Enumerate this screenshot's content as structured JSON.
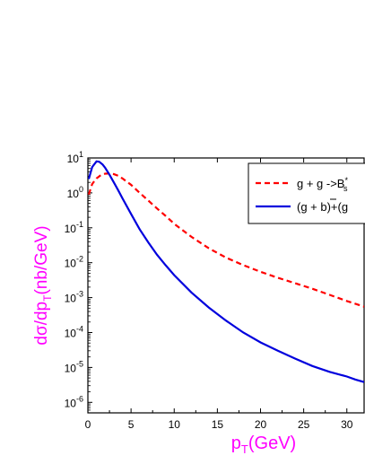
{
  "chart_data": {
    "type": "line",
    "xlabel": "p",
    "xlabel_sub": "T",
    "xlabel_tail": "(GeV)",
    "ylabel": "dσ/dp",
    "ylabel_sub": "T",
    "ylabel_tail": "(nb/GeV)",
    "xlim": [
      0,
      32
    ],
    "ylim": [
      5e-07,
      10
    ],
    "yscale": "log",
    "xticks": [
      0,
      5,
      10,
      15,
      20,
      25,
      30
    ],
    "xtick_labels": [
      "0",
      "5",
      "10",
      "15",
      "20",
      "25",
      "30"
    ],
    "yticks": [
      {
        "value": 10,
        "base": "10",
        "exp": "1"
      },
      {
        "value": 1,
        "base": "10",
        "exp": "0"
      },
      {
        "value": 0.1,
        "base": "10",
        "exp": "-1"
      },
      {
        "value": 0.01,
        "base": "10",
        "exp": "-2"
      },
      {
        "value": 0.001,
        "base": "10",
        "exp": "-3"
      },
      {
        "value": 0.0001,
        "base": "10",
        "exp": "-4"
      },
      {
        "value": 1e-05,
        "base": "10",
        "exp": "-5"
      },
      {
        "value": 1e-06,
        "base": "10",
        "exp": "-6"
      }
    ],
    "legend_position": "top-right",
    "series": [
      {
        "name": "g + g ->B*s",
        "legend_main": "g + g ->B",
        "legend_sup": "*",
        "legend_sub": "s",
        "color": "#ff0000",
        "dash": "dashed",
        "x": [
          0.1,
          0.5,
          1,
          1.5,
          2,
          2.5,
          3,
          3.5,
          4,
          5,
          6,
          7,
          8,
          9,
          10,
          12,
          14,
          16,
          18,
          20,
          22,
          24,
          26,
          28,
          30,
          32
        ],
        "y": [
          0.9,
          1.8,
          2.6,
          3.2,
          3.55,
          3.6,
          3.45,
          3.1,
          2.6,
          1.7,
          1.0,
          0.6,
          0.36,
          0.22,
          0.13,
          0.055,
          0.026,
          0.014,
          0.0085,
          0.0055,
          0.0037,
          0.0026,
          0.0018,
          0.0012,
          0.0008,
          0.00055
        ]
      },
      {
        "name": "(g + b̄)+(g",
        "legend_main": "(g + b)+(g",
        "color": "#0000dd",
        "dash": "solid",
        "x": [
          0.1,
          0.5,
          1,
          1.3,
          1.7,
          2,
          2.5,
          3,
          3.5,
          4,
          5,
          6,
          7,
          8,
          9,
          10,
          12,
          14,
          16,
          18,
          20,
          22,
          24,
          26,
          28,
          30,
          31,
          32
        ],
        "y": [
          2.5,
          5.5,
          8.0,
          7.8,
          6.5,
          5.2,
          3.3,
          2.0,
          1.2,
          0.7,
          0.25,
          0.09,
          0.038,
          0.017,
          0.0085,
          0.0044,
          0.0014,
          0.00052,
          0.00022,
          0.0001,
          5.2e-05,
          3e-05,
          1.8e-05,
          1.1e-05,
          7.5e-06,
          5.5e-06,
          4.5e-06,
          3.8e-06
        ]
      }
    ]
  }
}
